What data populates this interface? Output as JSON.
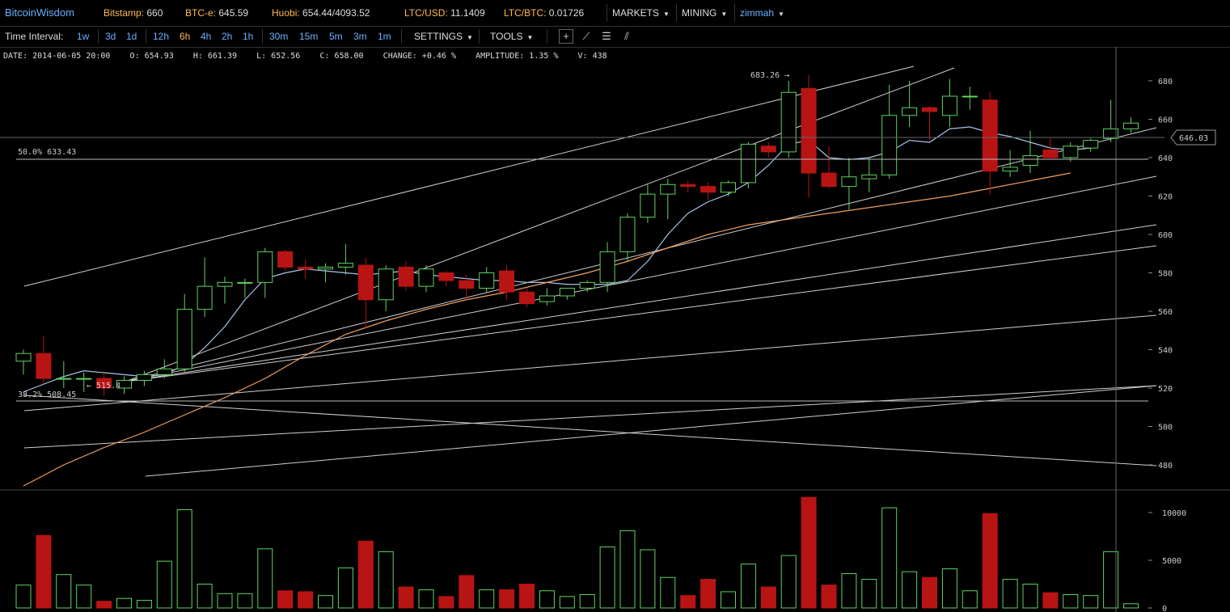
{
  "brand": "BitcoinWisdom",
  "tickers": [
    {
      "label": "Bitstamp:",
      "value": "660"
    },
    {
      "label": "BTC-e:",
      "value": "645.59"
    },
    {
      "label": "Huobi:",
      "value": "654.44/4093.52"
    },
    {
      "label": "LTC/USD:",
      "value": "11.1409"
    },
    {
      "label": "LTC/BTC:",
      "value": "0.01726"
    }
  ],
  "menus": {
    "markets": "MARKETS",
    "mining": "MINING",
    "user": "zimmah"
  },
  "toolbar": {
    "time_interval_label": "Time Interval:",
    "intervals": [
      "1w",
      "3d",
      "1d",
      "12h",
      "6h",
      "4h",
      "2h",
      "1h",
      "30m",
      "15m",
      "5m",
      "3m",
      "1m"
    ],
    "active_interval": "6h",
    "settings": "SETTINGS",
    "tools": "TOOLS"
  },
  "info": {
    "date": "DATE: 2014-06-05 20:00",
    "open": "O: 654.93",
    "high": "H: 661.39",
    "low": "L: 652.56",
    "close": "C: 658.00",
    "change": "CHANGE: +0.46 %",
    "amplitude": "AMPLITUDE: 1.35 %",
    "volume": "V: 438"
  },
  "annotations": {
    "high_marker": "683.26 →",
    "low_marker": "← 515.4",
    "fib_50": "50.0% 633.43",
    "fib_382": "38.2% 508.45",
    "current_price": "646.03"
  },
  "colors": {
    "up": "#5fd35f",
    "down": "#b81414",
    "ma_fast": "#a9c4e8",
    "ma_slow": "#f0a060",
    "line": "#cfcfcf"
  },
  "chart_data": {
    "type": "candlestick",
    "price_axis": {
      "ticks": [
        480,
        500,
        520,
        540,
        560,
        580,
        600,
        620,
        640,
        660,
        680
      ],
      "range": [
        471,
        692
      ]
    },
    "volume_axis": {
      "ticks": [
        0,
        5000,
        10000
      ],
      "labels": [
        "0",
        "5000",
        "10000"
      ],
      "range": [
        0,
        11600
      ]
    },
    "candles": [
      {
        "o": 534,
        "h": 540,
        "l": 527,
        "c": 538,
        "v": 2400
      },
      {
        "o": 538,
        "h": 547,
        "l": 522,
        "c": 525,
        "v": 7600
      },
      {
        "o": 525,
        "h": 534,
        "l": 520,
        "c": 525,
        "v": 3500
      },
      {
        "o": 525,
        "h": 528,
        "l": 518,
        "c": 525,
        "v": 2400
      },
      {
        "o": 525,
        "h": 528,
        "l": 516,
        "c": 520,
        "v": 700
      },
      {
        "o": 520,
        "h": 526,
        "l": 517,
        "c": 524,
        "v": 1000
      },
      {
        "o": 524,
        "h": 529,
        "l": 521,
        "c": 527,
        "v": 800
      },
      {
        "o": 527,
        "h": 535,
        "l": 525,
        "c": 530,
        "v": 4900
      },
      {
        "o": 530,
        "h": 569,
        "l": 528,
        "c": 561,
        "v": 10300
      },
      {
        "o": 561,
        "h": 588,
        "l": 557,
        "c": 573,
        "v": 2500
      },
      {
        "o": 573,
        "h": 578,
        "l": 564,
        "c": 575,
        "v": 1500
      },
      {
        "o": 575,
        "h": 577,
        "l": 567,
        "c": 575,
        "v": 1500
      },
      {
        "o": 575,
        "h": 593,
        "l": 567,
        "c": 591,
        "v": 6200
      },
      {
        "o": 591,
        "h": 592,
        "l": 581,
        "c": 583,
        "v": 1800
      },
      {
        "o": 583,
        "h": 587,
        "l": 577,
        "c": 582,
        "v": 1700
      },
      {
        "o": 582,
        "h": 585,
        "l": 575,
        "c": 583,
        "v": 1300
      },
      {
        "o": 583,
        "h": 595,
        "l": 579,
        "c": 585,
        "v": 4200
      },
      {
        "o": 584,
        "h": 588,
        "l": 551,
        "c": 566,
        "v": 7000
      },
      {
        "o": 566,
        "h": 584,
        "l": 560,
        "c": 582,
        "v": 5900
      },
      {
        "o": 583,
        "h": 586,
        "l": 571,
        "c": 573,
        "v": 2200
      },
      {
        "o": 573,
        "h": 584,
        "l": 570,
        "c": 582,
        "v": 1900
      },
      {
        "o": 580,
        "h": 581,
        "l": 573,
        "c": 576,
        "v": 1200
      },
      {
        "o": 576,
        "h": 579,
        "l": 566,
        "c": 572,
        "v": 3400
      },
      {
        "o": 572,
        "h": 583,
        "l": 570,
        "c": 580,
        "v": 1900
      },
      {
        "o": 581,
        "h": 584,
        "l": 566,
        "c": 570,
        "v": 1900
      },
      {
        "o": 570,
        "h": 572,
        "l": 562,
        "c": 564,
        "v": 2500
      },
      {
        "o": 565,
        "h": 572,
        "l": 563,
        "c": 568,
        "v": 1800
      },
      {
        "o": 568,
        "h": 572,
        "l": 566,
        "c": 572,
        "v": 1200
      },
      {
        "o": 572,
        "h": 576,
        "l": 570,
        "c": 575,
        "v": 1400
      },
      {
        "o": 575,
        "h": 596,
        "l": 570,
        "c": 591,
        "v": 6400
      },
      {
        "o": 591,
        "h": 611,
        "l": 586,
        "c": 609,
        "v": 8100
      },
      {
        "o": 609,
        "h": 626,
        "l": 606,
        "c": 621,
        "v": 6100
      },
      {
        "o": 621,
        "h": 629,
        "l": 608,
        "c": 626,
        "v": 3200
      },
      {
        "o": 626,
        "h": 628,
        "l": 622,
        "c": 625,
        "v": 1300
      },
      {
        "o": 625,
        "h": 627,
        "l": 618,
        "c": 622,
        "v": 3000
      },
      {
        "o": 622,
        "h": 628,
        "l": 620,
        "c": 627,
        "v": 1700
      },
      {
        "o": 627,
        "h": 648,
        "l": 624,
        "c": 647,
        "v": 4600
      },
      {
        "o": 646,
        "h": 648,
        "l": 640,
        "c": 643,
        "v": 2200
      },
      {
        "o": 643,
        "h": 680,
        "l": 640,
        "c": 674,
        "v": 5500
      },
      {
        "o": 676,
        "h": 683,
        "l": 619,
        "c": 632,
        "v": 11600
      },
      {
        "o": 632,
        "h": 646,
        "l": 624,
        "c": 625,
        "v": 2400
      },
      {
        "o": 625,
        "h": 640,
        "l": 613,
        "c": 630,
        "v": 3600
      },
      {
        "o": 629,
        "h": 640,
        "l": 622,
        "c": 631,
        "v": 3000
      },
      {
        "o": 631,
        "h": 678,
        "l": 629,
        "c": 662,
        "v": 10500
      },
      {
        "o": 662,
        "h": 680,
        "l": 656,
        "c": 666,
        "v": 3800
      },
      {
        "o": 666,
        "h": 667,
        "l": 649,
        "c": 664,
        "v": 3200
      },
      {
        "o": 662,
        "h": 681,
        "l": 656,
        "c": 672,
        "v": 4100
      },
      {
        "o": 672,
        "h": 677,
        "l": 665,
        "c": 672,
        "v": 1800
      },
      {
        "o": 670,
        "h": 674,
        "l": 621,
        "c": 633,
        "v": 9900
      },
      {
        "o": 633,
        "h": 644,
        "l": 630,
        "c": 635,
        "v": 3000
      },
      {
        "o": 636,
        "h": 654,
        "l": 632,
        "c": 641,
        "v": 2500
      },
      {
        "o": 644,
        "h": 650,
        "l": 639,
        "c": 640,
        "v": 1600
      },
      {
        "o": 640,
        "h": 648,
        "l": 638,
        "c": 646,
        "v": 1400
      },
      {
        "o": 645,
        "h": 650,
        "l": 643,
        "c": 649,
        "v": 1300
      },
      {
        "o": 650,
        "h": 670,
        "l": 648,
        "c": 655,
        "v": 5900
      },
      {
        "o": 655,
        "h": 661,
        "l": 653,
        "c": 658,
        "v": 438
      }
    ],
    "ma_fast": [
      518,
      522,
      526,
      529,
      528,
      527,
      526,
      527,
      532,
      541,
      552,
      566,
      577,
      580,
      582,
      581,
      580,
      579,
      580,
      581,
      579,
      578,
      577,
      576,
      576,
      575,
      575,
      574,
      574,
      574,
      576,
      586,
      600,
      611,
      617,
      621,
      627,
      636,
      647,
      649,
      640,
      639,
      640,
      643,
      649,
      648,
      655,
      656,
      653,
      651,
      648,
      645,
      644,
      645
    ],
    "ma_slow": [
      469,
      480,
      489,
      497,
      506,
      515,
      525,
      537,
      548,
      555,
      561,
      566,
      570,
      575,
      580,
      586,
      593,
      600,
      605,
      608,
      611,
      614,
      617,
      620,
      624,
      628,
      632
    ]
  }
}
